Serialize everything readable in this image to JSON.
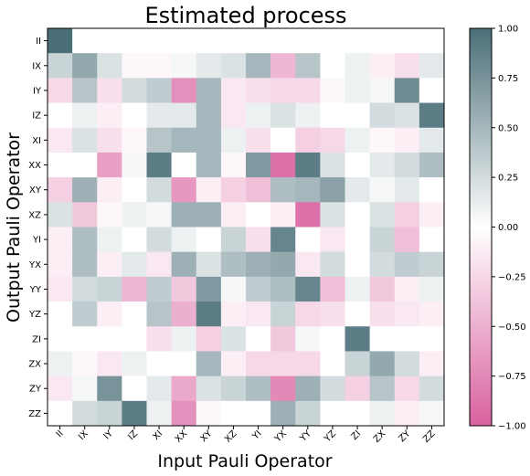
{
  "chart_data": {
    "type": "heatmap",
    "title": "Estimated process",
    "xlabel": "Input Pauli Operator",
    "ylabel": "Output Pauli Operator",
    "x_categories": [
      "II",
      "IX",
      "IY",
      "IZ",
      "XI",
      "XX",
      "XY",
      "XZ",
      "YI",
      "YX",
      "YY",
      "YZ",
      "ZI",
      "ZX",
      "ZY",
      "ZZ"
    ],
    "y_categories": [
      "II",
      "IX",
      "IY",
      "IZ",
      "XI",
      "XX",
      "XY",
      "XZ",
      "YI",
      "YX",
      "YY",
      "YZ",
      "ZI",
      "ZX",
      "ZY",
      "ZZ"
    ],
    "values": [
      [
        1.0,
        0,
        0,
        0,
        0,
        0,
        0,
        0,
        0,
        0,
        0,
        0,
        0,
        0,
        0,
        0
      ],
      [
        0.3,
        0.6,
        0.2,
        -0.05,
        -0.05,
        0.05,
        0.15,
        0.2,
        0.5,
        -0.45,
        0.4,
        0.0,
        0.1,
        -0.1,
        -0.2,
        0.15
      ],
      [
        -0.25,
        0.4,
        -0.2,
        0.25,
        0.35,
        -0.7,
        0.5,
        -0.15,
        -0.2,
        -0.25,
        -0.25,
        -0.05,
        0.1,
        0.05,
        0.8,
        0.0
      ],
      [
        0.0,
        0.1,
        -0.1,
        0.0,
        0.15,
        0.15,
        0.5,
        -0.15,
        0.1,
        0.2,
        0.1,
        0.0,
        0.0,
        0.25,
        0.2,
        0.9
      ],
      [
        -0.15,
        0.2,
        -0.2,
        -0.05,
        0.4,
        0.5,
        0.5,
        0.1,
        -0.2,
        0.0,
        -0.3,
        -0.25,
        0.1,
        -0.05,
        -0.1,
        0.15
      ],
      [
        0.0,
        0.0,
        -0.6,
        0.05,
        0.9,
        0.0,
        0.5,
        -0.05,
        0.7,
        -0.9,
        0.9,
        0.2,
        0.0,
        0.15,
        0.25,
        0.45
      ],
      [
        -0.3,
        0.55,
        -0.1,
        0.0,
        0.25,
        -0.65,
        -0.1,
        -0.3,
        -0.4,
        0.45,
        0.5,
        0.65,
        0.15,
        0.05,
        0.15,
        0.0
      ],
      [
        0.2,
        -0.35,
        -0.05,
        0.1,
        0.05,
        0.55,
        0.55,
        -0.1,
        0.0,
        -0.1,
        -0.9,
        0.2,
        0.0,
        0.2,
        -0.3,
        -0.1
      ],
      [
        -0.1,
        0.45,
        0.1,
        0.0,
        0.25,
        0.1,
        0.0,
        0.3,
        -0.2,
        0.85,
        0.0,
        -0.15,
        0.0,
        0.3,
        -0.4,
        0.0
      ],
      [
        -0.1,
        0.45,
        -0.1,
        0.15,
        -0.15,
        0.55,
        0.2,
        0.45,
        0.55,
        0.6,
        -0.15,
        0.25,
        0.0,
        0.25,
        0.35,
        0.3
      ],
      [
        -0.15,
        0.25,
        0.3,
        -0.45,
        0.35,
        -0.35,
        0.7,
        0.05,
        0.35,
        0.45,
        0.85,
        -0.4,
        0.1,
        -0.35,
        -0.1,
        0.1
      ],
      [
        0.0,
        0.35,
        -0.1,
        0.0,
        0.4,
        -0.5,
        0.9,
        -0.1,
        -0.15,
        0.3,
        -0.25,
        -0.2,
        0.0,
        -0.2,
        -0.15,
        -0.1
      ],
      [
        0.0,
        0.0,
        0.0,
        0.0,
        -0.2,
        0.1,
        -0.3,
        0.2,
        0.0,
        -0.35,
        0.05,
        0.0,
        0.9,
        0.0,
        0.0,
        0.0
      ],
      [
        0.1,
        -0.05,
        -0.15,
        0.1,
        0.0,
        0.0,
        0.5,
        -0.1,
        -0.25,
        -0.25,
        -0.25,
        0.0,
        0.3,
        0.6,
        0.25,
        -0.1
      ],
      [
        -0.15,
        0.05,
        0.75,
        0.0,
        0.15,
        -0.55,
        0.2,
        0.3,
        0.45,
        -0.75,
        0.55,
        0.25,
        -0.3,
        0.4,
        -0.25,
        0.25
      ],
      [
        0.0,
        0.25,
        0.3,
        0.9,
        0.1,
        -0.7,
        -0.05,
        0.0,
        0.0,
        0.55,
        0.3,
        0.0,
        0.0,
        0.1,
        -0.1,
        0.05
      ]
    ],
    "zlim": [
      -1.0,
      1.0
    ],
    "colorbar_ticks": [
      1.0,
      0.75,
      0.5,
      0.25,
      0.0,
      -0.25,
      -0.5,
      -0.75,
      -1.0
    ],
    "colorbar_tick_labels": [
      "1.00",
      "0.75",
      "0.50",
      "0.25",
      "0.00",
      "−0.25",
      "−0.50",
      "−0.75",
      "−1.00"
    ],
    "colormap": {
      "negative": "#d9619f",
      "zero": "#ffffff",
      "positive": "#4b6f78"
    },
    "grid": false
  }
}
